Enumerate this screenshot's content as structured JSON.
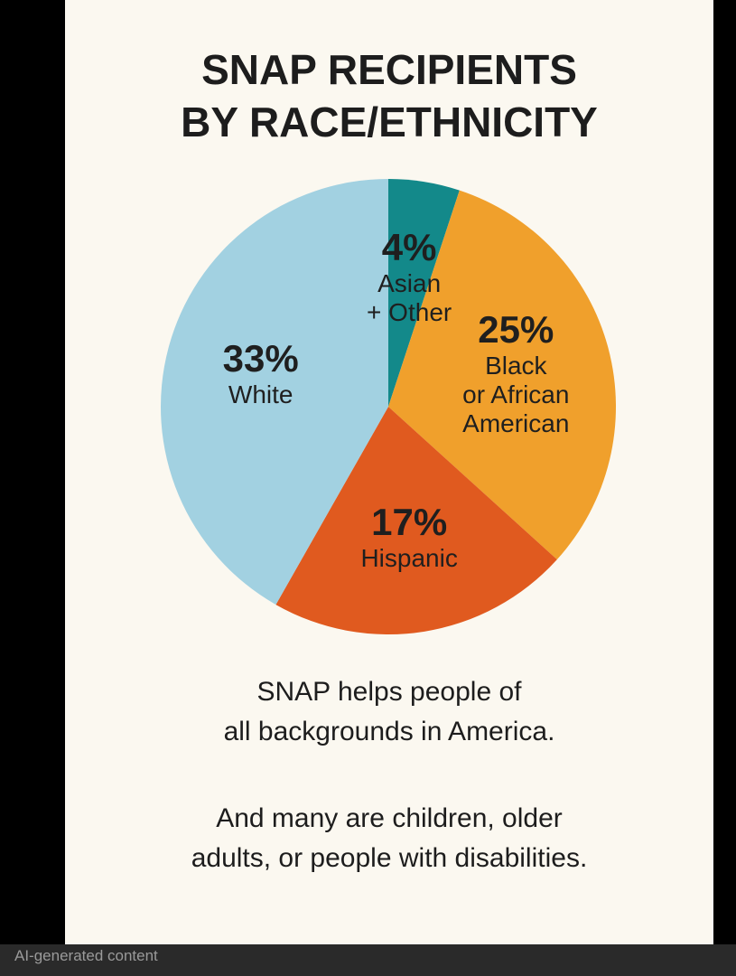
{
  "chart_data": {
    "type": "pie",
    "title": "SNAP RECIPIENTS\nBY RACE/ETHNICITY",
    "categories": [
      "Asian\n+ Other",
      "Black\nor African\nAmerican",
      "Hispanic",
      "White"
    ],
    "values": [
      4,
      25,
      17,
      33
    ],
    "value_labels": [
      "4%",
      "25%",
      "17%",
      "33%"
    ],
    "colors": [
      "#13898a",
      "#f0a02c",
      "#e05a1f",
      "#a2d1e1"
    ],
    "notes": [
      "SNAP helps people of\nall backgrounds in America.",
      "And many are children, older\nadults, or people with disabilities."
    ]
  },
  "ai_notice": "AI-generated content"
}
